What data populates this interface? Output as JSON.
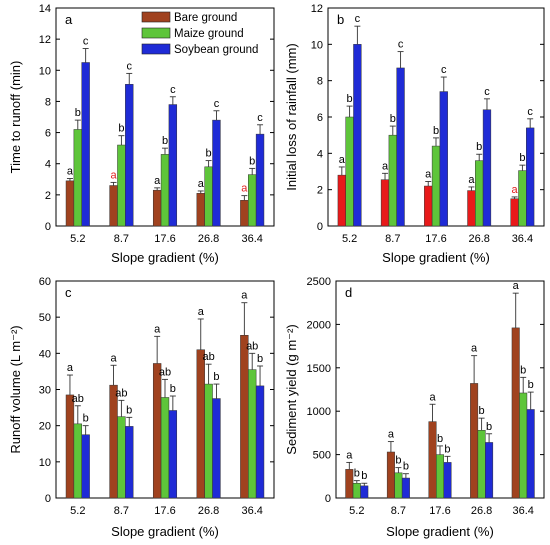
{
  "legend": {
    "items": [
      {
        "label": "Bare ground",
        "color": "#a0421f"
      },
      {
        "label": "Maize ground",
        "color": "#5ec53a"
      },
      {
        "label": "Soybean ground",
        "color": "#1f2bd6"
      }
    ],
    "placement": "top-center (panel a)"
  },
  "chart_data": [
    {
      "type": "bar",
      "panel": "a",
      "categories": [
        "5.2",
        "8.7",
        "17.6",
        "26.8",
        "36.4"
      ],
      "xlabel": "Slope gradient (%)",
      "ylabel": "Time to runoff (min)",
      "ylim": [
        0,
        14
      ],
      "yticks": [
        0,
        2,
        4,
        6,
        8,
        10,
        12,
        14
      ],
      "series": [
        {
          "name": "Bare ground",
          "values": [
            2.9,
            2.6,
            2.3,
            2.1,
            1.65
          ],
          "errors": [
            0.15,
            0.2,
            0.15,
            0.15,
            0.3
          ],
          "letters": [
            "a",
            "a",
            "a",
            "a",
            "a"
          ],
          "color": "#a0421f"
        },
        {
          "name": "Maize ground",
          "values": [
            6.2,
            5.2,
            4.6,
            3.8,
            3.3
          ],
          "errors": [
            0.6,
            0.6,
            0.4,
            0.4,
            0.4
          ],
          "letters": [
            "b",
            "b",
            "b",
            "b",
            "b"
          ],
          "color": "#5ec53a"
        },
        {
          "name": "Soybean ground",
          "values": [
            10.5,
            9.1,
            7.8,
            6.8,
            5.9
          ],
          "errors": [
            0.9,
            0.7,
            0.5,
            0.6,
            0.6
          ],
          "letters": [
            "c",
            "c",
            "c",
            "c",
            "c"
          ],
          "color": "#1f2bd6"
        }
      ],
      "letter_colors": [
        "#000000",
        "#e02020",
        "#000000",
        "#000000",
        "#e02020"
      ]
    },
    {
      "type": "bar",
      "panel": "b",
      "categories": [
        "5.2",
        "8.7",
        "17.6",
        "26.8",
        "36.4"
      ],
      "xlabel": "Slope gradient (%)",
      "ylabel": "Initial loss of rainfall (mm)",
      "ylim": [
        0,
        12
      ],
      "yticks": [
        0,
        2,
        4,
        6,
        8,
        10,
        12
      ],
      "series": [
        {
          "name": "Bare ground",
          "values": [
            2.8,
            2.55,
            2.2,
            1.95,
            1.5
          ],
          "errors": [
            0.45,
            0.35,
            0.25,
            0.2,
            0.1
          ],
          "letters": [
            "a",
            "a",
            "a",
            "a",
            "a"
          ],
          "color": "#e81a1a"
        },
        {
          "name": "Maize ground",
          "values": [
            6.0,
            5.0,
            4.4,
            3.6,
            3.05
          ],
          "errors": [
            0.6,
            0.5,
            0.45,
            0.35,
            0.3
          ],
          "letters": [
            "b",
            "b",
            "b",
            "b",
            "b"
          ],
          "color": "#5ec53a"
        },
        {
          "name": "Soybean ground",
          "values": [
            10.0,
            8.7,
            7.4,
            6.4,
            5.4
          ],
          "errors": [
            1.0,
            0.9,
            0.8,
            0.6,
            0.5
          ],
          "letters": [
            "c",
            "c",
            "c",
            "c",
            "c"
          ],
          "color": "#1f2bd6"
        }
      ],
      "letter_colors": [
        "#000000",
        "#000000",
        "#000000",
        "#000000",
        "#e02020"
      ]
    },
    {
      "type": "bar",
      "panel": "c",
      "categories": [
        "5.2",
        "8.7",
        "17.6",
        "26.8",
        "36.4"
      ],
      "xlabel": "Slope gradient (%)",
      "ylabel": "Runoff volume (L m⁻²)",
      "ylim": [
        0,
        60
      ],
      "yticks": [
        0,
        10,
        20,
        30,
        40,
        50,
        60
      ],
      "series": [
        {
          "name": "Bare ground",
          "values": [
            28.5,
            31.2,
            37.2,
            41.0,
            45.0
          ],
          "errors": [
            5.5,
            5.5,
            7.5,
            8.5,
            9.0
          ],
          "letters": [
            "a",
            "a",
            "a",
            "a",
            "a"
          ],
          "color": "#a0421f"
        },
        {
          "name": "Maize ground",
          "values": [
            20.5,
            22.5,
            27.8,
            31.5,
            35.5
          ],
          "errors": [
            5.0,
            4.5,
            5.0,
            5.5,
            4.5
          ],
          "letters": [
            "ab",
            "ab",
            "ab",
            "ab",
            "ab"
          ],
          "color": "#5ec53a"
        },
        {
          "name": "Soybean ground",
          "values": [
            17.5,
            19.8,
            24.2,
            27.5,
            31.0
          ],
          "errors": [
            2.5,
            2.5,
            4.0,
            4.0,
            5.5
          ],
          "letters": [
            "b",
            "b",
            "b",
            "b",
            "b"
          ],
          "color": "#1f2bd6"
        }
      ],
      "letter_colors": [
        "#000000",
        "#000000",
        "#000000",
        "#000000",
        "#000000"
      ]
    },
    {
      "type": "bar",
      "panel": "d",
      "categories": [
        "5.2",
        "8.7",
        "17.6",
        "26.8",
        "36.4"
      ],
      "xlabel": "Slope gradient (%)",
      "ylabel": "Sediment yield (g m⁻²)",
      "ylim": [
        0,
        2500
      ],
      "yticks": [
        0,
        500,
        1000,
        1500,
        2000,
        2500
      ],
      "series": [
        {
          "name": "Bare ground",
          "values": [
            330,
            530,
            880,
            1320,
            1960
          ],
          "errors": [
            80,
            120,
            200,
            320,
            400
          ],
          "letters": [
            "a",
            "a",
            "a",
            "a",
            "a"
          ],
          "color": "#a0421f"
        },
        {
          "name": "Maize ground",
          "values": [
            170,
            290,
            500,
            780,
            1210
          ],
          "errors": [
            30,
            60,
            100,
            140,
            180
          ],
          "letters": [
            "b",
            "b",
            "b",
            "b",
            "b"
          ],
          "color": "#5ec53a"
        },
        {
          "name": "Soybean ground",
          "values": [
            140,
            230,
            410,
            640,
            1020
          ],
          "errors": [
            30,
            50,
            70,
            100,
            200
          ],
          "letters": [
            "b",
            "b",
            "b",
            "b",
            "b"
          ],
          "color": "#1f2bd6"
        }
      ],
      "letter_colors": [
        "#000000",
        "#000000",
        "#000000",
        "#000000",
        "#000000"
      ]
    }
  ]
}
